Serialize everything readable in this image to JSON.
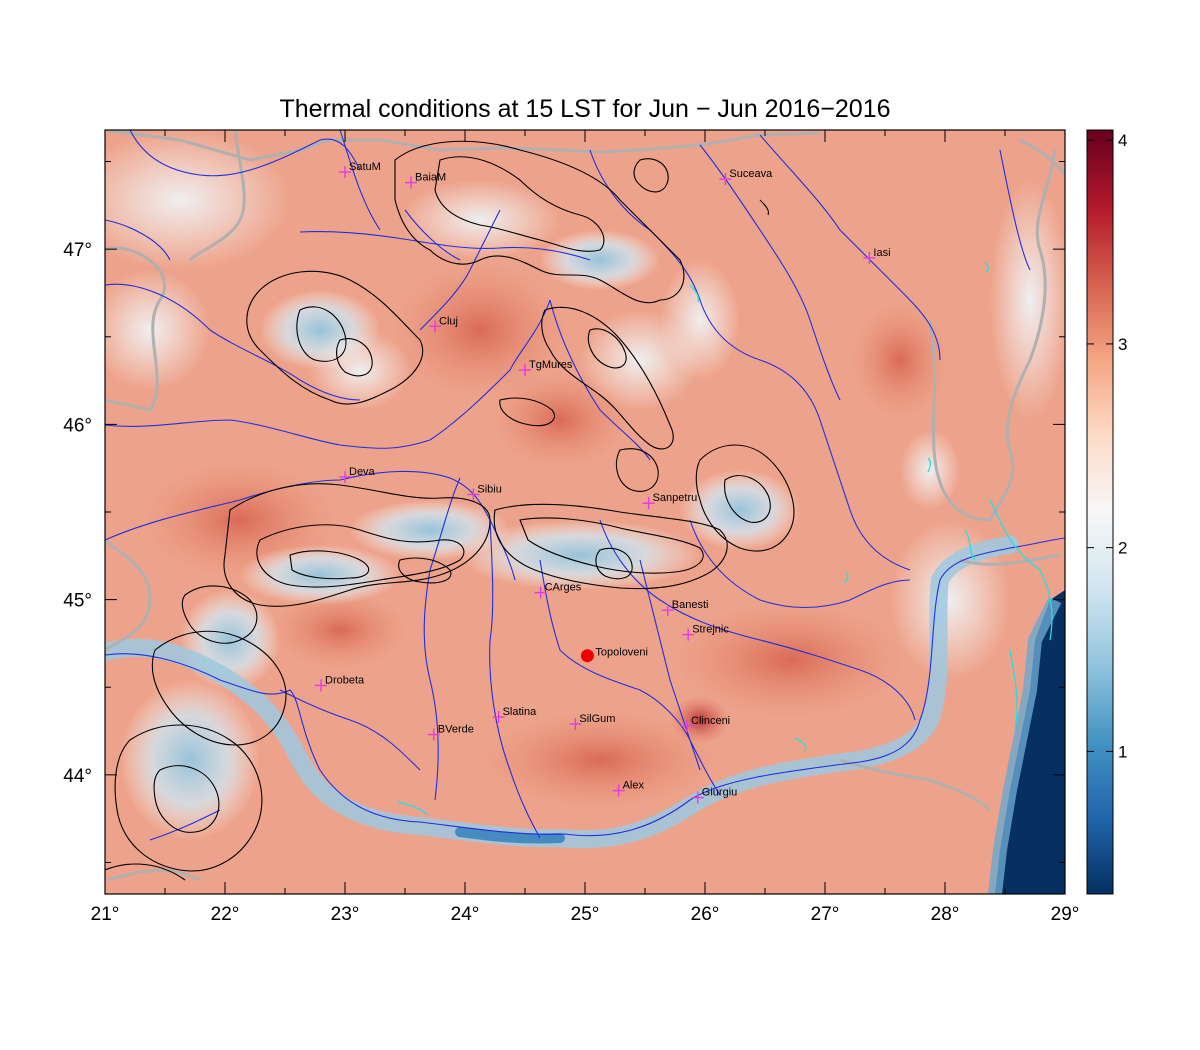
{
  "title": "Thermal conditions at 15 LST for Jun − Jun  2016−2016",
  "map": {
    "lon_range": [
      21,
      29
    ],
    "lat_range": [
      43.32,
      47.68
    ],
    "lon_ticks": [
      21,
      22,
      23,
      24,
      25,
      26,
      27,
      28,
      29
    ],
    "lon_tick_labels": [
      "21°",
      "22°",
      "23°",
      "24°",
      "25°",
      "26°",
      "27°",
      "28°",
      "29°"
    ],
    "lat_ticks": [
      44,
      45,
      46,
      47
    ],
    "lat_tick_labels": [
      "44°",
      "45°",
      "46°",
      "47°"
    ],
    "colors": {
      "warm_dark": "#67001f",
      "warm": "#d6604d",
      "warm_light": "#f4a582",
      "neutral": "#f7f7f7",
      "cool_light": "#d1e5f0",
      "cool": "#4393c3",
      "cool_dark": "#053061",
      "river": "#1f2fe0",
      "lake": "#22e0e0",
      "border": "#aaaaaa",
      "contour": "#000000",
      "station_marker": "#e43ae4",
      "highlight_point": "#ee0000"
    }
  },
  "colorbar": {
    "min": 0.3,
    "max": 4.05,
    "ticks": [
      1,
      2,
      3,
      4
    ],
    "tick_labels": [
      "1",
      "2",
      "3",
      "4"
    ],
    "palette": [
      "#053061",
      "#2166ac",
      "#4393c3",
      "#92c5de",
      "#d1e5f0",
      "#f7f7f7",
      "#fddbc7",
      "#f4a582",
      "#d6604d",
      "#b2182b",
      "#67001f"
    ]
  },
  "cities": [
    {
      "name": "SatuM",
      "lon": 23.0,
      "lat": 47.44
    },
    {
      "name": "BaiaM",
      "lon": 23.55,
      "lat": 47.38
    },
    {
      "name": "Suceava",
      "lon": 26.17,
      "lat": 47.4
    },
    {
      "name": "Iasi",
      "lon": 27.37,
      "lat": 46.95
    },
    {
      "name": "Cluj",
      "lon": 23.75,
      "lat": 46.56
    },
    {
      "name": "TgMures",
      "lon": 24.5,
      "lat": 46.31
    },
    {
      "name": "Deva",
      "lon": 23.0,
      "lat": 45.7
    },
    {
      "name": "Sibiu",
      "lon": 24.07,
      "lat": 45.6
    },
    {
      "name": "Sanpetru",
      "lon": 25.53,
      "lat": 45.55
    },
    {
      "name": "CArges",
      "lon": 24.63,
      "lat": 45.04
    },
    {
      "name": "Banesti",
      "lon": 25.69,
      "lat": 44.94
    },
    {
      "name": "Strejnic",
      "lon": 25.86,
      "lat": 44.8
    },
    {
      "name": "Drobeta",
      "lon": 22.8,
      "lat": 44.51
    },
    {
      "name": "Slatina",
      "lon": 24.28,
      "lat": 44.33
    },
    {
      "name": "SilGum",
      "lon": 24.92,
      "lat": 44.29
    },
    {
      "name": "Clinceni",
      "lon": 25.85,
      "lat": 44.28
    },
    {
      "name": "BVerde",
      "lon": 23.74,
      "lat": 44.23
    },
    {
      "name": "Alex",
      "lon": 25.28,
      "lat": 43.91
    },
    {
      "name": "Giurgiu",
      "lon": 25.94,
      "lat": 43.87
    }
  ],
  "highlight_point": {
    "name": "Topoloveni",
    "lon": 25.02,
    "lat": 44.68
  }
}
